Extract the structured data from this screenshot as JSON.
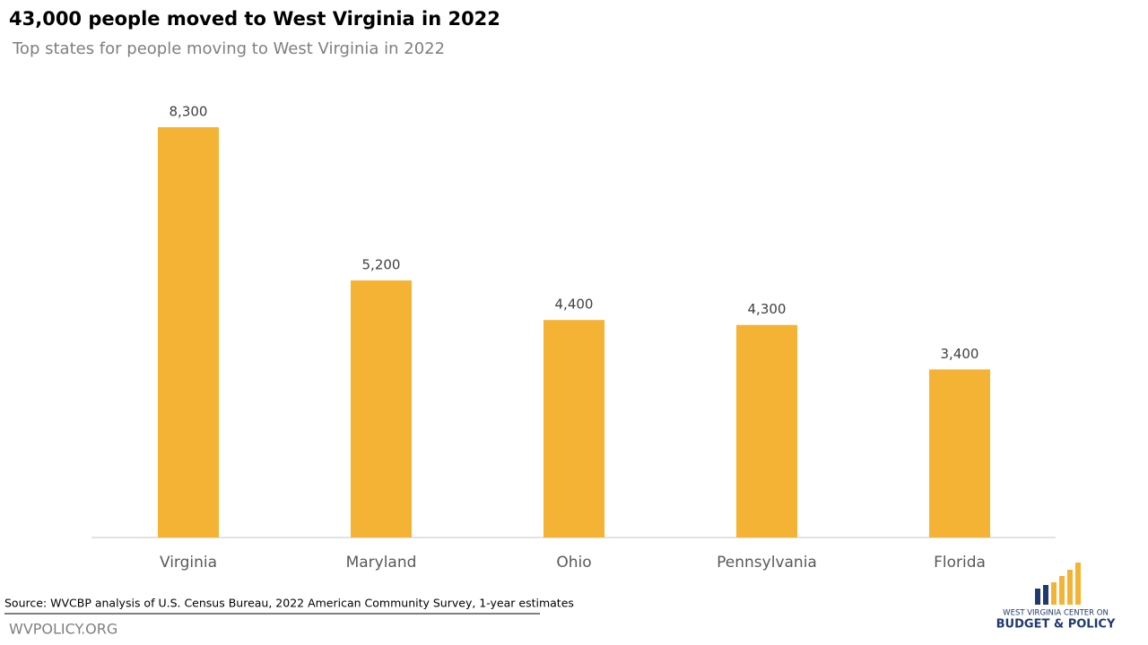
{
  "chart_data": {
    "type": "bar",
    "title": "43,000 people moved to West Virginia in 2022",
    "subtitle": "Top states for people moving to West Virginia in 2022",
    "categories": [
      "Virginia",
      "Maryland",
      "Ohio",
      "Pennsylvania",
      "Florida"
    ],
    "values": [
      8300,
      5200,
      4400,
      4300,
      3400
    ],
    "value_labels": [
      "8,300",
      "5,200",
      "4,400",
      "4,300",
      "3,400"
    ],
    "color": "#f5b335"
  },
  "source": "Source: WVCBP analysis of U.S. Census Bureau, 2022 American Community Survey, 1-year estimates",
  "footer": "WVPOLICY.ORG",
  "logo": {
    "line1": "WEST VIRGINIA CENTER ON",
    "line2": "BUDGET & POLICY"
  }
}
